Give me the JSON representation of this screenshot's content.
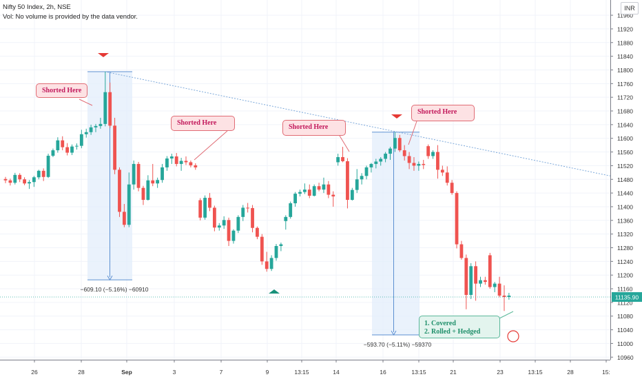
{
  "header": {
    "title": "Nifty 50 Index, 2h, NSE",
    "vol_note": "Vol: No volume is provided by the data vendor."
  },
  "currency_label": "INR",
  "last_price_label": "11135.90",
  "annotations": {
    "callouts": [
      "Shorted Here",
      "Shorted Here",
      "Shorted Here",
      "Shorted Here"
    ],
    "note_lines": [
      "1. Covered",
      "2. Rolled + Hedged"
    ],
    "measure_labels": [
      "−609.10 (−5.16%) −60910",
      "−593.70 (−5.11%) −59370"
    ]
  },
  "colors": {
    "up": "#26a69a",
    "down": "#ef5350",
    "trendline": "#7aa7d9",
    "measure_fill": "#e3eefb",
    "measure_line": "#5b8fd1",
    "price_label_bg": "#26a69a"
  },
  "chart_data": {
    "type": "candlestick",
    "title": "Nifty 50 Index, 2h, NSE",
    "ylim": [
      10940,
      12000
    ],
    "y_ticks": [
      10960,
      11000,
      11040,
      11080,
      11120,
      11160,
      11200,
      11240,
      11280,
      11320,
      11360,
      11400,
      11440,
      11480,
      11520,
      11560,
      11600,
      11640,
      11680,
      11720,
      11760,
      11800,
      11840,
      11880,
      11920,
      11960
    ],
    "x_ticks": [
      "26",
      "28",
      "Sep",
      "3",
      "7",
      "9",
      "13:15",
      "14",
      "16",
      "13:15",
      "21",
      "23",
      "13:15",
      "28",
      "15:"
    ],
    "last_price": 11135.9,
    "grid": true,
    "candles": [
      [
        11481,
        11487,
        11469,
        11477
      ],
      [
        11477,
        11482,
        11462,
        11470
      ],
      [
        11470,
        11499,
        11465,
        11493
      ],
      [
        11493,
        11498,
        11472,
        11480
      ],
      [
        11480,
        11486,
        11463,
        11468
      ],
      [
        11468,
        11478,
        11452,
        11472
      ],
      [
        11472,
        11490,
        11458,
        11486
      ],
      [
        11486,
        11508,
        11480,
        11505
      ],
      [
        11505,
        11512,
        11475,
        11487
      ],
      [
        11487,
        11555,
        11484,
        11549
      ],
      [
        11549,
        11570,
        11545,
        11565
      ],
      [
        11565,
        11603,
        11558,
        11594
      ],
      [
        11594,
        11606,
        11565,
        11574
      ],
      [
        11574,
        11586,
        11550,
        11558
      ],
      [
        11558,
        11582,
        11551,
        11576
      ],
      [
        11576,
        11585,
        11567,
        11578
      ],
      [
        11578,
        11625,
        11571,
        11612
      ],
      [
        11612,
        11628,
        11602,
        11618
      ],
      [
        11618,
        11640,
        11610,
        11632
      ],
      [
        11632,
        11642,
        11618,
        11636
      ],
      [
        11636,
        11660,
        11628,
        11642
      ],
      [
        11642,
        11795,
        11635,
        11735
      ],
      [
        11735,
        11763,
        11630,
        11637
      ],
      [
        11637,
        11660,
        11495,
        11508
      ],
      [
        11508,
        11515,
        11370,
        11385
      ],
      [
        11385,
        11408,
        11340,
        11347
      ],
      [
        11347,
        11500,
        11340,
        11465
      ],
      [
        11465,
        11535,
        11450,
        11525
      ],
      [
        11525,
        11531,
        11445,
        11455
      ],
      [
        11455,
        11461,
        11405,
        11420
      ],
      [
        11420,
        11492,
        11418,
        11477
      ],
      [
        11477,
        11525,
        11460,
        11468
      ],
      [
        11468,
        11485,
        11455,
        11478
      ],
      [
        11478,
        11525,
        11470,
        11515
      ],
      [
        11515,
        11548,
        11505,
        11541
      ],
      [
        11541,
        11555,
        11525,
        11547
      ],
      [
        11547,
        11557,
        11518,
        11525
      ],
      [
        11525,
        11543,
        11505,
        11534
      ],
      [
        11534,
        11547,
        11522,
        11530
      ],
      [
        11530,
        11535,
        11515,
        11521
      ],
      [
        11521,
        11527,
        11508,
        11515
      ],
      [
        11419,
        11425,
        11360,
        11368
      ],
      [
        11368,
        11433,
        11362,
        11426
      ],
      [
        11426,
        11440,
        11387,
        11397
      ],
      [
        11397,
        11403,
        11328,
        11339
      ],
      [
        11339,
        11352,
        11330,
        11345
      ],
      [
        11345,
        11372,
        11335,
        11361
      ],
      [
        11361,
        11368,
        11285,
        11300
      ],
      [
        11300,
        11334,
        11292,
        11330
      ],
      [
        11330,
        11375,
        11323,
        11370
      ],
      [
        11370,
        11405,
        11358,
        11397
      ],
      [
        11397,
        11411,
        11383,
        11396
      ],
      [
        11396,
        11405,
        11325,
        11338
      ],
      [
        11338,
        11342,
        11305,
        11312
      ],
      [
        11312,
        11320,
        11230,
        11240
      ],
      [
        11240,
        11268,
        11210,
        11218
      ],
      [
        11218,
        11258,
        11212,
        11250
      ],
      [
        11250,
        11291,
        11242,
        11285
      ],
      [
        11285,
        11295,
        11270,
        11290
      ],
      [
        11358,
        11375,
        11333,
        11370
      ],
      [
        11370,
        11415,
        11365,
        11410
      ],
      [
        11410,
        11443,
        11400,
        11438
      ],
      [
        11438,
        11450,
        11430,
        11443
      ],
      [
        11443,
        11468,
        11437,
        11450
      ],
      [
        11450,
        11465,
        11425,
        11432
      ],
      [
        11432,
        11465,
        11430,
        11460
      ],
      [
        11460,
        11470,
        11445,
        11450
      ],
      [
        11450,
        11485,
        11440,
        11465
      ],
      [
        11465,
        11475,
        11425,
        11435
      ],
      [
        11435,
        11445,
        11400,
        11430
      ],
      [
        11530,
        11555,
        11520,
        11545
      ],
      [
        11545,
        11575,
        11530,
        11533
      ],
      [
        11533,
        11542,
        11395,
        11420
      ],
      [
        11420,
        11455,
        11418,
        11449
      ],
      [
        11449,
        11510,
        11440,
        11480
      ],
      [
        11480,
        11498,
        11465,
        11490
      ],
      [
        11490,
        11520,
        11480,
        11515
      ],
      [
        11515,
        11528,
        11500,
        11525
      ],
      [
        11525,
        11540,
        11512,
        11532
      ],
      [
        11532,
        11545,
        11520,
        11540
      ],
      [
        11540,
        11560,
        11530,
        11555
      ],
      [
        11555,
        11575,
        11537,
        11570
      ],
      [
        11570,
        11618,
        11560,
        11601
      ],
      [
        11601,
        11610,
        11560,
        11565
      ],
      [
        11565,
        11580,
        11535,
        11548
      ],
      [
        11548,
        11560,
        11510,
        11528
      ],
      [
        11528,
        11545,
        11505,
        11520
      ],
      [
        11520,
        11532,
        11505,
        11525
      ],
      [
        11525,
        11537,
        11510,
        11522
      ],
      [
        11577,
        11582,
        11540,
        11548
      ],
      [
        11548,
        11565,
        11540,
        11560
      ],
      [
        11560,
        11580,
        11482,
        11508
      ],
      [
        11508,
        11520,
        11490,
        11500
      ],
      [
        11500,
        11518,
        11462,
        11470
      ],
      [
        11470,
        11478,
        11435,
        11440
      ],
      [
        11440,
        11445,
        11278,
        11290
      ],
      [
        11290,
        11300,
        11245,
        11250
      ],
      [
        11250,
        11260,
        11100,
        11142
      ],
      [
        11142,
        11235,
        11130,
        11226
      ],
      [
        11226,
        11240,
        11125,
        11175
      ],
      [
        11175,
        11195,
        11165,
        11185
      ],
      [
        11185,
        11195,
        11172,
        11180
      ],
      [
        11258,
        11265,
        11160,
        11165
      ],
      [
        11165,
        11180,
        11150,
        11175
      ],
      [
        11175,
        11195,
        11135,
        11140
      ],
      [
        11140,
        11170,
        11095,
        11136
      ],
      [
        11136,
        11148,
        11128,
        11140
      ]
    ]
  }
}
